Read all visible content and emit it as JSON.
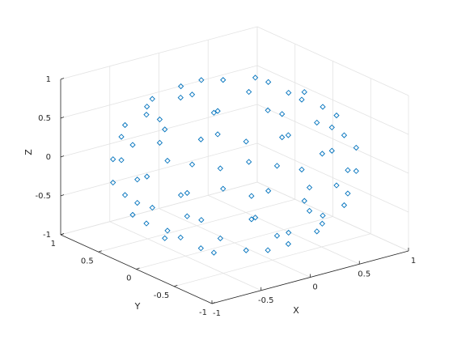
{
  "chart_data": {
    "type": "scatter3d",
    "xlabel": "X",
    "ylabel": "Y",
    "zlabel": "Z",
    "color": "#0072bd",
    "marker": "diamond",
    "grid": true,
    "xlim": [
      -1,
      1
    ],
    "ylim": [
      -1,
      1
    ],
    "zlim": [
      -1,
      1
    ],
    "xticks": [
      -1,
      -0.5,
      0,
      0.5,
      1
    ],
    "yticks": [
      -1,
      -0.5,
      0,
      0.5,
      1
    ],
    "zticks": [
      -1,
      -0.5,
      0,
      0.5,
      1
    ],
    "x": [
      0.38,
      0,
      -0.38,
      -0.38,
      0,
      0.38,
      0.71,
      0.62,
      0.36,
      0,
      -0.36,
      -0.62,
      -0.71,
      -0.62,
      -0.36,
      0,
      0.36,
      0.62,
      0.86,
      0.63,
      0.23,
      -0.23,
      -0.63,
      -0.86,
      -0.86,
      -0.63,
      -0.23,
      0.23,
      0.63,
      0.86,
      0.99,
      0.86,
      0.49,
      0,
      -0.49,
      -0.86,
      -0.99,
      -0.86,
      -0.49,
      0,
      0.49,
      0.86,
      0.99,
      0.86,
      0.49,
      0,
      -0.49,
      -0.86,
      -0.99,
      -0.86,
      -0.49,
      0,
      0.49,
      0.86,
      0.86,
      0.63,
      0.23,
      -0.23,
      -0.63,
      -0.86,
      -0.86,
      -0.63,
      -0.23,
      0.23,
      0.63,
      0.86,
      0.71,
      0.62,
      0.36,
      0,
      -0.36,
      -0.62,
      -0.71,
      -0.62,
      -0.36,
      0,
      0.36,
      0.62,
      0.38,
      0,
      -0.38,
      -0.38,
      0,
      0.38
    ],
    "y": [
      0.22,
      0.44,
      0.22,
      -0.22,
      -0.44,
      -0.22,
      0,
      0.36,
      0.62,
      0.71,
      0.62,
      0.36,
      0,
      -0.36,
      -0.62,
      -0.71,
      -0.62,
      -0.36,
      0.23,
      0.63,
      0.86,
      0.86,
      0.63,
      0.23,
      -0.23,
      -0.63,
      -0.86,
      -0.86,
      -0.63,
      -0.23,
      0,
      0.49,
      0.86,
      0.99,
      0.86,
      0.49,
      0,
      -0.49,
      -0.86,
      -0.99,
      -0.86,
      -0.49,
      0,
      0.49,
      0.86,
      0.99,
      0.86,
      0.49,
      0,
      -0.49,
      -0.86,
      -0.99,
      -0.86,
      -0.49,
      0.23,
      0.63,
      0.86,
      0.86,
      0.63,
      0.23,
      -0.23,
      -0.63,
      -0.86,
      -0.86,
      -0.63,
      -0.23,
      0,
      0.36,
      0.62,
      0.71,
      0.62,
      0.36,
      0,
      -0.36,
      -0.62,
      -0.71,
      -0.62,
      -0.36,
      0.22,
      0.44,
      0.22,
      -0.22,
      -0.44,
      -0.22
    ],
    "z": [
      -0.9,
      -0.9,
      -0.9,
      -0.9,
      -0.9,
      -0.9,
      -0.7,
      -0.7,
      -0.7,
      -0.7,
      -0.7,
      -0.7,
      -0.7,
      -0.7,
      -0.7,
      -0.7,
      -0.7,
      -0.7,
      -0.45,
      -0.45,
      -0.45,
      -0.45,
      -0.45,
      -0.45,
      -0.45,
      -0.45,
      -0.45,
      -0.45,
      -0.45,
      -0.45,
      -0.15,
      -0.15,
      -0.15,
      -0.15,
      -0.15,
      -0.15,
      -0.15,
      -0.15,
      -0.15,
      -0.15,
      -0.15,
      -0.15,
      0.15,
      0.15,
      0.15,
      0.15,
      0.15,
      0.15,
      0.15,
      0.15,
      0.15,
      0.15,
      0.15,
      0.15,
      0.45,
      0.45,
      0.45,
      0.45,
      0.45,
      0.45,
      0.45,
      0.45,
      0.45,
      0.45,
      0.45,
      0.45,
      0.7,
      0.7,
      0.7,
      0.7,
      0.7,
      0.7,
      0.7,
      0.7,
      0.7,
      0.7,
      0.7,
      0.7,
      0.9,
      0.9,
      0.9,
      0.9,
      0.9,
      0.9
    ]
  }
}
